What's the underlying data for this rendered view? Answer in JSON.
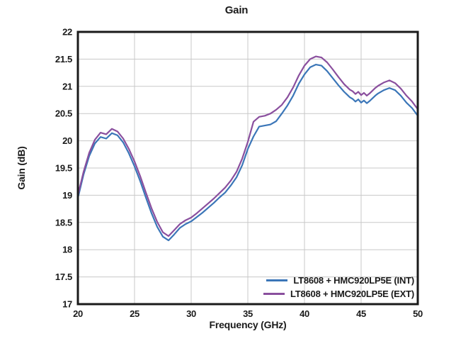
{
  "colors": {
    "background": "#ffffff",
    "axis": "#1a1a1a",
    "grid": "#c8c8c8",
    "text": "#1a1a1a",
    "series_int": "#3b76b8",
    "series_ext": "#8a4f9e"
  },
  "chart_data": {
    "type": "line",
    "title": "Gain",
    "xlabel": "Frequency (GHz)",
    "ylabel": "Gain (dB)",
    "xlim": [
      20,
      50
    ],
    "ylim": [
      17,
      22
    ],
    "xticks": [
      20,
      25,
      30,
      35,
      40,
      45,
      50
    ],
    "yticks": [
      17,
      17.5,
      18,
      18.5,
      19,
      19.5,
      20,
      20.5,
      21,
      21.5,
      22
    ],
    "grid": true,
    "legend_position": "inside-bottom-right",
    "x": [
      20,
      20.5,
      21,
      21.5,
      22,
      22.5,
      23,
      23.5,
      24,
      24.5,
      25,
      25.5,
      26,
      26.5,
      27,
      27.5,
      28,
      28.5,
      29,
      29.5,
      30,
      30.5,
      31,
      31.5,
      32,
      32.5,
      33,
      33.5,
      34,
      34.5,
      35,
      35.5,
      36,
      36.5,
      37,
      37.5,
      38,
      38.5,
      39,
      39.5,
      40,
      40.5,
      41,
      41.5,
      42,
      42.5,
      43,
      43.5,
      43.75,
      44,
      44.25,
      44.5,
      44.75,
      45,
      45.25,
      45.5,
      45.75,
      46,
      46.25,
      46.5,
      47,
      47.5,
      48,
      48.5,
      49,
      49.5,
      50
    ],
    "series": [
      {
        "name": "LT8608 + HMC920LP5E (INT)",
        "color": "#3b76b8",
        "values": [
          18.95,
          19.38,
          19.72,
          19.95,
          20.07,
          20.04,
          20.14,
          20.1,
          19.97,
          19.77,
          19.53,
          19.26,
          18.96,
          18.67,
          18.42,
          18.24,
          18.17,
          18.28,
          18.4,
          18.47,
          18.52,
          18.6,
          18.68,
          18.77,
          18.86,
          18.96,
          19.05,
          19.18,
          19.33,
          19.55,
          19.85,
          20.08,
          20.26,
          20.28,
          20.3,
          20.36,
          20.5,
          20.65,
          20.83,
          21.05,
          21.22,
          21.35,
          21.4,
          21.38,
          21.28,
          21.15,
          21.02,
          20.9,
          20.85,
          20.8,
          20.77,
          20.72,
          20.76,
          20.7,
          20.74,
          20.69,
          20.73,
          20.78,
          20.83,
          20.87,
          20.93,
          20.97,
          20.93,
          20.83,
          20.7,
          20.6,
          20.46
        ]
      },
      {
        "name": "LT8608 + HMC920LP5E (EXT)",
        "color": "#8a4f9e",
        "values": [
          19.0,
          19.43,
          19.78,
          20.02,
          20.15,
          20.12,
          20.22,
          20.17,
          20.04,
          19.85,
          19.62,
          19.35,
          19.05,
          18.76,
          18.51,
          18.32,
          18.25,
          18.36,
          18.47,
          18.54,
          18.59,
          18.67,
          18.76,
          18.85,
          18.94,
          19.04,
          19.14,
          19.27,
          19.43,
          19.67,
          19.98,
          20.35,
          20.44,
          20.46,
          20.5,
          20.57,
          20.66,
          20.8,
          20.98,
          21.2,
          21.38,
          21.5,
          21.55,
          21.53,
          21.44,
          21.31,
          21.17,
          21.04,
          20.99,
          20.94,
          20.91,
          20.86,
          20.9,
          20.84,
          20.88,
          20.83,
          20.87,
          20.92,
          20.97,
          21.01,
          21.07,
          21.11,
          21.06,
          20.96,
          20.83,
          20.72,
          20.58
        ]
      }
    ]
  }
}
